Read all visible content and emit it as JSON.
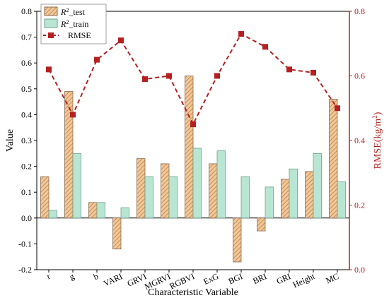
{
  "chart_data": {
    "type": "bar",
    "categories": [
      "r",
      "g",
      "b",
      "VARI",
      "GRVI",
      "MGRVI",
      "RGBVI",
      "ExG",
      "BGI",
      "BRI",
      "GRI",
      "Height",
      "MC"
    ],
    "series": [
      {
        "name": "R2_test",
        "label_main": "R",
        "label_sup": "2",
        "label_suffix": "_test",
        "type": "bar",
        "axis": "left",
        "color": "#f2c896",
        "stroke": "#8b6b52",
        "hatch": true,
        "values": [
          0.16,
          0.49,
          0.06,
          -0.12,
          0.23,
          0.21,
          0.55,
          0.21,
          -0.17,
          -0.05,
          0.15,
          0.18,
          0.46
        ]
      },
      {
        "name": "R2_train",
        "label_main": "R",
        "label_sup": "2",
        "label_suffix": "_train",
        "type": "bar",
        "axis": "left",
        "color": "#b9e6d3",
        "stroke": "#6f9e8e",
        "hatch": false,
        "values": [
          0.03,
          0.25,
          0.06,
          0.04,
          0.16,
          0.16,
          0.27,
          0.26,
          0.16,
          0.12,
          0.19,
          0.25,
          0.14
        ]
      },
      {
        "name": "RMSE",
        "label_main": "RMSE",
        "label_sup": "",
        "label_suffix": "",
        "type": "line",
        "axis": "right",
        "color": "#b52020",
        "values": [
          0.62,
          0.48,
          0.65,
          0.71,
          0.59,
          0.6,
          0.45,
          0.6,
          0.73,
          0.69,
          0.62,
          0.61,
          0.5
        ]
      }
    ],
    "xlabel": "Characteristic Variable",
    "ylabel_left": "Value",
    "ylabel_right_main": "RMSE(kg/m",
    "ylabel_right_sup": "2",
    "ylabel_right_end": ")",
    "ylim_left": [
      -0.2,
      0.8
    ],
    "yticks_left": [
      "-0.2",
      "-0.1",
      "0.0",
      "0.1",
      "0.2",
      "0.3",
      "0.4",
      "0.5",
      "0.6",
      "0.7",
      "0.8"
    ],
    "ylim_right": [
      0.0,
      0.8
    ],
    "yticks_right": [
      "0.0",
      "0.2",
      "0.4",
      "0.6",
      "0.8"
    ],
    "legend_position": "top-left",
    "grid": false,
    "right_axis_color": "#b52020"
  }
}
